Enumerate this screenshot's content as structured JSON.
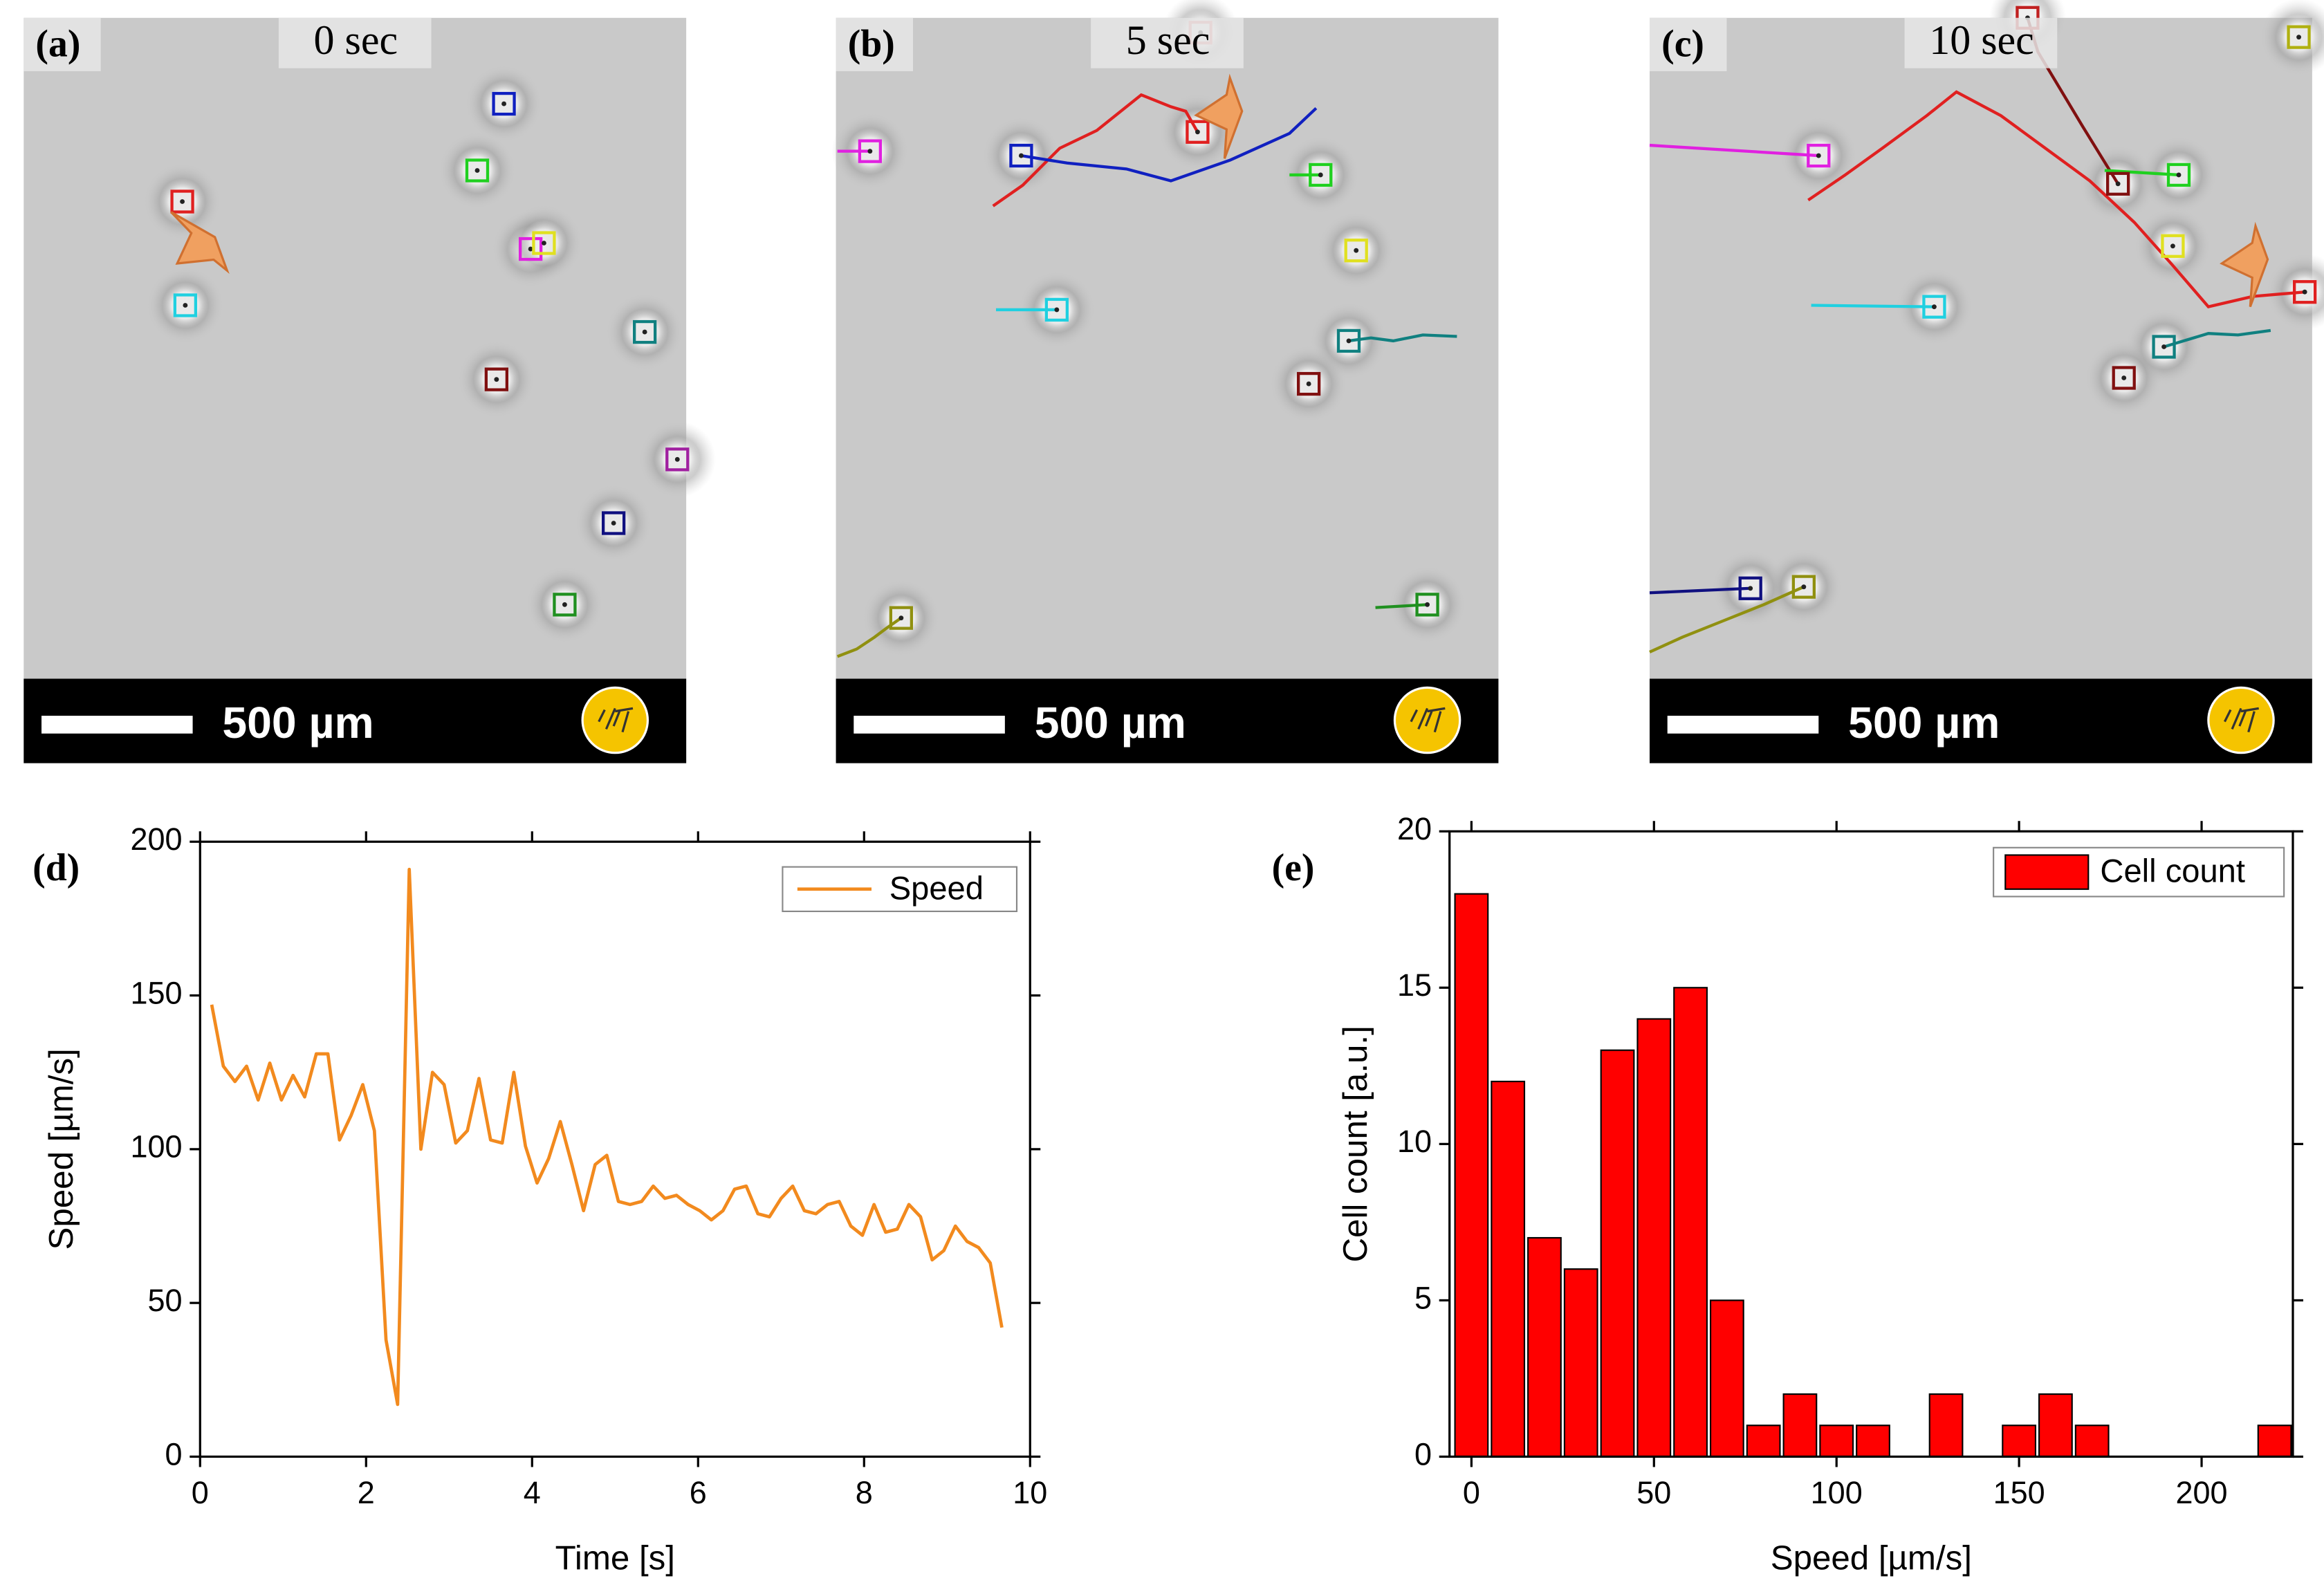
{
  "panels": [
    {
      "label": "(a)",
      "time": "0 sec",
      "scale_bar": "500 µm"
    },
    {
      "label": "(b)",
      "time": "5 sec",
      "scale_bar": "500 µm"
    },
    {
      "label": "(c)",
      "time": "10 sec",
      "scale_bar": "500 µm"
    }
  ],
  "chart_data": [
    {
      "type": "line",
      "panel_label": "(d)",
      "x_label": "Time [s]",
      "y_label": "Speed [µm/s]",
      "xlim": [
        0,
        10
      ],
      "xticks": [
        0,
        2,
        4,
        6,
        8,
        10
      ],
      "ylim": [
        0,
        200
      ],
      "yticks": [
        0,
        50,
        100,
        150,
        200
      ],
      "legend": "upper right",
      "x": [
        0.14,
        0.28,
        0.42,
        0.56,
        0.7,
        0.84,
        0.98,
        1.12,
        1.26,
        1.4,
        1.54,
        1.68,
        1.82,
        1.96,
        2.1,
        2.24,
        2.38,
        2.52,
        2.66,
        2.8,
        2.94,
        3.08,
        3.22,
        3.36,
        3.5,
        3.64,
        3.78,
        3.92,
        4.06,
        4.2,
        4.34,
        4.48,
        4.62,
        4.76,
        4.9,
        5.04,
        5.18,
        5.32,
        5.46,
        5.6,
        5.74,
        5.88,
        6.02,
        6.16,
        6.3,
        6.44,
        6.58,
        6.72,
        6.86,
        7.0,
        7.14,
        7.28,
        7.42,
        7.56,
        7.7,
        7.84,
        7.98,
        8.12,
        8.26,
        8.4,
        8.54,
        8.68,
        8.82,
        8.96,
        9.1,
        9.24,
        9.38,
        9.52,
        9.66
      ],
      "series": [
        {
          "name": "Speed",
          "color": "#f28a1e",
          "values": [
            147,
            127,
            122,
            127,
            116,
            128,
            116,
            124,
            117,
            131,
            131,
            103,
            111,
            121,
            106,
            38,
            17,
            191,
            100,
            125,
            121,
            102,
            106,
            123,
            103,
            102,
            125,
            101,
            89,
            97,
            109,
            95,
            80,
            95,
            98,
            83,
            82,
            83,
            88,
            84,
            85,
            82,
            80,
            77,
            80,
            87,
            88,
            79,
            78,
            84,
            88,
            80,
            79,
            82,
            83,
            75,
            72,
            82,
            73,
            74,
            82,
            78,
            64,
            67,
            75,
            70,
            68,
            63,
            42
          ]
        }
      ]
    },
    {
      "type": "histogram",
      "panel_label": "(e)",
      "x_label": "Speed [µm/s]",
      "y_label": "Cell count [a.u.]",
      "xlim": [
        -6,
        225
      ],
      "xticks": [
        0,
        50,
        100,
        150,
        200
      ],
      "ylim": [
        0,
        20
      ],
      "yticks": [
        0,
        5,
        10,
        15,
        20
      ],
      "legend": "upper right",
      "bins": [
        -5,
        5,
        15,
        25,
        35,
        45,
        55,
        65,
        75,
        85,
        95,
        105,
        115,
        125,
        135,
        145,
        155,
        165,
        175,
        185,
        195,
        205,
        215,
        225
      ],
      "series": [
        {
          "name": "Cell count",
          "color": "#ff0000",
          "values": [
            18,
            12,
            7,
            6,
            13,
            14,
            15,
            5,
            1,
            2,
            1,
            1,
            0,
            2,
            0,
            1,
            2,
            1,
            0,
            0,
            0,
            0,
            1
          ]
        }
      ]
    }
  ]
}
